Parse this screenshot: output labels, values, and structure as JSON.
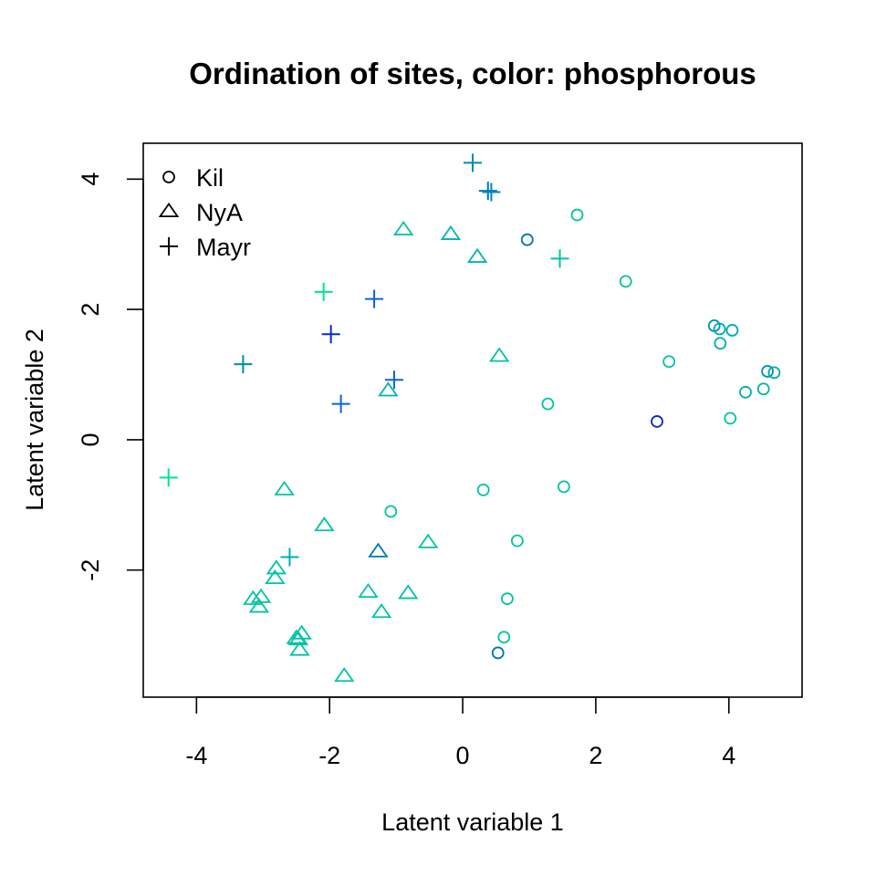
{
  "chart_data": {
    "type": "scatter",
    "title": "Ordination of sites, color: phosphorous",
    "xlabel": "Latent variable  1",
    "ylabel": "Latent variable  2",
    "xlim": [
      -4.8,
      5.1
    ],
    "ylim": [
      -3.95,
      4.55
    ],
    "xticks": [
      -4,
      -2,
      0,
      2,
      4
    ],
    "yticks": [
      -2,
      0,
      2,
      4
    ],
    "grid": false,
    "legend_position": "top-left",
    "colors": {
      "teal_dark": "#0089b0",
      "teal": "#00afae",
      "teal_light": "#00c4a3",
      "green": "#00e38e",
      "blue": "#1161d3",
      "navy": "#0a28c8"
    },
    "series": [
      {
        "name": "Kil",
        "marker": "circle",
        "points": [
          {
            "x": 0.97,
            "y": 3.07,
            "color": "#0077b5"
          },
          {
            "x": 1.72,
            "y": 3.45,
            "color": "#00c4a3"
          },
          {
            "x": 2.45,
            "y": 2.43,
            "color": "#00c4a3"
          },
          {
            "x": 3.78,
            "y": 1.75,
            "color": "#0096b0"
          },
          {
            "x": 3.86,
            "y": 1.7,
            "color": "#00a9b0"
          },
          {
            "x": 4.05,
            "y": 1.68,
            "color": "#00a9b0"
          },
          {
            "x": 3.87,
            "y": 1.48,
            "color": "#00afae"
          },
          {
            "x": 3.1,
            "y": 1.2,
            "color": "#00c4a3"
          },
          {
            "x": 4.58,
            "y": 1.05,
            "color": "#0096b0"
          },
          {
            "x": 4.68,
            "y": 1.03,
            "color": "#00a9b0"
          },
          {
            "x": 4.25,
            "y": 0.73,
            "color": "#00afae"
          },
          {
            "x": 4.52,
            "y": 0.78,
            "color": "#00b5ab"
          },
          {
            "x": 4.02,
            "y": 0.33,
            "color": "#00c4a3"
          },
          {
            "x": 2.92,
            "y": 0.28,
            "color": "#0a28c8"
          },
          {
            "x": 1.28,
            "y": 0.55,
            "color": "#00c4a3"
          },
          {
            "x": 1.52,
            "y": -0.72,
            "color": "#00c4a3"
          },
          {
            "x": 0.31,
            "y": -0.77,
            "color": "#00c4a3"
          },
          {
            "x": -1.08,
            "y": -1.1,
            "color": "#00c4a3"
          },
          {
            "x": 0.82,
            "y": -1.55,
            "color": "#00c4a3"
          },
          {
            "x": 0.67,
            "y": -2.44,
            "color": "#00c4a3"
          },
          {
            "x": 0.62,
            "y": -3.03,
            "color": "#00c4a3"
          },
          {
            "x": 0.53,
            "y": -3.27,
            "color": "#0077b5"
          }
        ]
      },
      {
        "name": "NyA",
        "marker": "triangle",
        "points": [
          {
            "x": -0.89,
            "y": 3.22,
            "color": "#00c4a3"
          },
          {
            "x": -0.18,
            "y": 3.15,
            "color": "#00b5ab"
          },
          {
            "x": 0.22,
            "y": 2.8,
            "color": "#00b5ab"
          },
          {
            "x": 0.55,
            "y": 1.28,
            "color": "#00c4a3"
          },
          {
            "x": -1.12,
            "y": 0.75,
            "color": "#00b5ab"
          },
          {
            "x": -2.68,
            "y": -0.77,
            "color": "#00c4a3"
          },
          {
            "x": -2.08,
            "y": -1.32,
            "color": "#00c4a3"
          },
          {
            "x": -0.52,
            "y": -1.58,
            "color": "#00c4a3"
          },
          {
            "x": -1.27,
            "y": -1.72,
            "color": "#0077b5"
          },
          {
            "x": -2.8,
            "y": -1.98,
            "color": "#00c4a3"
          },
          {
            "x": -2.82,
            "y": -2.13,
            "color": "#00c4a3"
          },
          {
            "x": -1.42,
            "y": -2.34,
            "color": "#00c4a3"
          },
          {
            "x": -0.82,
            "y": -2.36,
            "color": "#00c4a3"
          },
          {
            "x": -3.15,
            "y": -2.45,
            "color": "#00c4a3"
          },
          {
            "x": -3.03,
            "y": -2.42,
            "color": "#00c4a3"
          },
          {
            "x": -3.06,
            "y": -2.57,
            "color": "#00c4a3"
          },
          {
            "x": -1.22,
            "y": -2.65,
            "color": "#00c4a3"
          },
          {
            "x": -2.42,
            "y": -2.98,
            "color": "#00c4a3"
          },
          {
            "x": -2.5,
            "y": -3.05,
            "color": "#00c4a3"
          },
          {
            "x": -2.47,
            "y": -3.07,
            "color": "#00c4a3"
          },
          {
            "x": -2.45,
            "y": -3.23,
            "color": "#00c4a3"
          },
          {
            "x": -1.78,
            "y": -3.63,
            "color": "#00c4a3"
          }
        ]
      },
      {
        "name": "Mayr",
        "marker": "plus",
        "points": [
          {
            "x": 0.15,
            "y": 4.25,
            "color": "#0089b0"
          },
          {
            "x": 0.38,
            "y": 3.82,
            "color": "#0077b5"
          },
          {
            "x": 0.43,
            "y": 3.8,
            "color": "#0089b0"
          },
          {
            "x": 1.46,
            "y": 2.78,
            "color": "#00c4a3"
          },
          {
            "x": -2.09,
            "y": 2.27,
            "color": "#00e38e"
          },
          {
            "x": -1.33,
            "y": 2.16,
            "color": "#1161d3"
          },
          {
            "x": -1.98,
            "y": 1.62,
            "color": "#0a28c8"
          },
          {
            "x": -3.3,
            "y": 1.16,
            "color": "#0089b0"
          },
          {
            "x": -1.03,
            "y": 0.92,
            "color": "#1161d3"
          },
          {
            "x": -1.83,
            "y": 0.55,
            "color": "#1161d3"
          },
          {
            "x": -4.42,
            "y": -0.58,
            "color": "#00e38e"
          },
          {
            "x": -2.6,
            "y": -1.8,
            "color": "#00afae"
          }
        ]
      }
    ]
  }
}
